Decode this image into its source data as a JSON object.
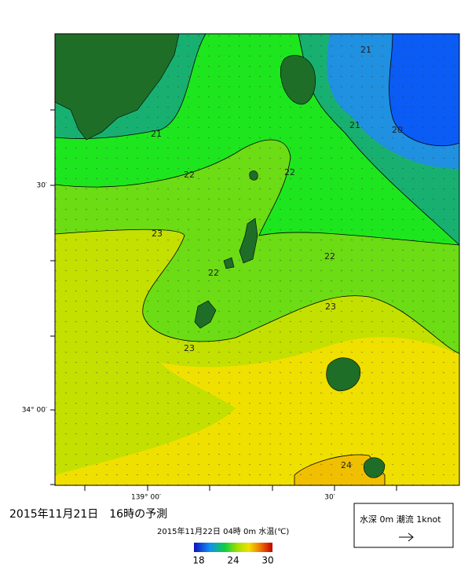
{
  "map": {
    "lat_labels": [
      "30′",
      "34° 00′"
    ],
    "lon_labels": [
      "139° 00′",
      "30′"
    ],
    "contour_labels": [
      "21",
      "21",
      "20",
      "21",
      "22",
      "22",
      "23",
      "22",
      "22",
      "23",
      "23",
      "24"
    ]
  },
  "caption": "2015年11月21日　16時の予測",
  "subtitle": "2015年11月22日 04時 0m 水温(℃)",
  "colorbar": {
    "ticks": [
      18,
      24,
      30
    ]
  },
  "legend": {
    "label": "水深 0m 潮流 1knot"
  }
}
